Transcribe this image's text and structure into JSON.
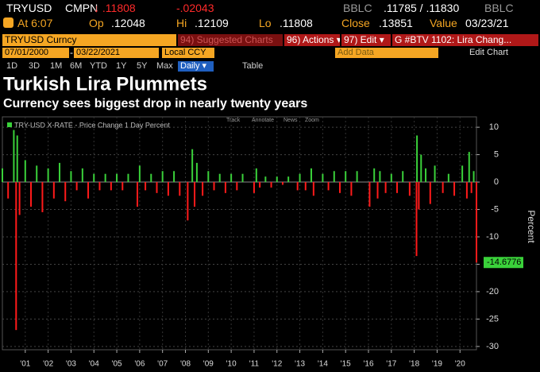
{
  "quote": {
    "ticker": "TRYUSD",
    "source": "CMPN",
    "last": "↓ .11808",
    "change": "-.02043",
    "bid_source": "BBLC",
    "bid_ask": ".11785 / .11830",
    "ask_source": "BBLC"
  },
  "quote_row2": {
    "time": "At 6:07",
    "open_label": "Op",
    "open": ".12048",
    "high_label": "Hi",
    "high": ".12109",
    "low_label": "Lo",
    "low": ".11808",
    "close_label": "Close",
    "close": ".13851",
    "value_label": "Value",
    "value_date": "03/23/21"
  },
  "toolbar": {
    "security": "TRYUSD Curncy",
    "suggested": "94) Suggested Charts",
    "actions": "96) Actions ▾",
    "edit": "97) Edit ▾",
    "story": "G #BTV 1102: Lira Chang..."
  },
  "range": {
    "start": "07/01/2000",
    "end": "03/22/2021",
    "currency": "Local CCY",
    "add_data": "Add Data",
    "edit_chart": "Edit Chart"
  },
  "periods": [
    "1D",
    "3D",
    "1M",
    "6M",
    "YTD",
    "1Y",
    "5Y",
    "Max"
  ],
  "frequency": "Daily ▾",
  "table": "Table",
  "chart_data": {
    "type": "bar",
    "title": "Turkish Lira Plummets",
    "subtitle": "Currency sees biggest drop in nearly twenty years",
    "tools": [
      "Track",
      "Annotate",
      "News",
      "Zoom"
    ],
    "y_label": "Percent",
    "color_up": "#3ad13a",
    "color_down": "#ff1a1a",
    "grid": true,
    "series": [
      {
        "name": "TRY-USD X-RATE - Price Change 1 Day Percent",
        "color": "#3ad13a",
        "x": [
          2000.5,
          2000.75,
          2001.0,
          2001.1,
          2001.15,
          2001.25,
          2001.5,
          2001.75,
          2002.0,
          2002.25,
          2002.5,
          2002.75,
          2003.0,
          2003.25,
          2003.5,
          2003.75,
          2004.0,
          2004.25,
          2004.5,
          2004.75,
          2005.0,
          2005.25,
          2005.5,
          2005.75,
          2006.0,
          2006.4,
          2006.5,
          2006.75,
          2007.0,
          2007.25,
          2007.5,
          2007.75,
          2008.0,
          2008.25,
          2008.6,
          2008.8,
          2008.9,
          2009.0,
          2009.25,
          2009.5,
          2009.75,
          2010.0,
          2010.25,
          2010.5,
          2010.75,
          2011.0,
          2011.5,
          2011.6,
          2011.75,
          2012.0,
          2012.25,
          2012.5,
          2012.75,
          2013.0,
          2013.4,
          2013.5,
          2013.75,
          2014.0,
          2014.1,
          2014.5,
          2014.75,
          2015.0,
          2015.25,
          2015.5,
          2015.75,
          2016.0,
          2016.55,
          2016.75,
          2016.9,
          2017.0,
          2017.25,
          2017.5,
          2017.75,
          2018.0,
          2018.3,
          2018.6,
          2018.62,
          2018.7,
          2018.8,
          2019.0,
          2019.2,
          2019.4,
          2019.75,
          2020.0,
          2020.25,
          2020.6,
          2020.8,
          2020.9,
          2021.0,
          2021.1,
          2021.22
        ],
        "values": [
          2.5,
          -3,
          9.5,
          -27,
          8.5,
          -6,
          4,
          -4.5,
          3,
          -5.5,
          2.5,
          -3,
          3.5,
          -3.5,
          2,
          -1.5,
          2.5,
          -3,
          1.5,
          -1.5,
          1.5,
          -1.5,
          1.5,
          -1.5,
          1.5,
          -4.5,
          3,
          -1.5,
          1.5,
          -2,
          2,
          -2.5,
          2,
          -2.5,
          -7,
          6,
          -4.5,
          3.5,
          -2.5,
          2,
          -1.5,
          1.5,
          -2,
          1.5,
          -1.5,
          1.5,
          -2,
          2.5,
          -1,
          1,
          -1,
          1,
          -0.5,
          1,
          -1.5,
          1.5,
          -1.5,
          2.5,
          -2.5,
          1.5,
          -1.5,
          2,
          -2,
          2,
          -2.5,
          2,
          -4.5,
          2.5,
          -3,
          2,
          -2,
          1.5,
          -2,
          2,
          -2.5,
          -13.5,
          8.5,
          -5,
          5,
          2.5,
          -4,
          3,
          -2,
          1.5,
          -2.5,
          3,
          -3,
          5.5,
          -2,
          2,
          -14.6776
        ]
      }
    ],
    "xlim": [
      2000.5,
      2021.22
    ],
    "xticks": [
      {
        "value": 2001.5,
        "label": "'01"
      },
      {
        "value": 2002.5,
        "label": "'02"
      },
      {
        "value": 2003.5,
        "label": "'03"
      },
      {
        "value": 2004.5,
        "label": "'04"
      },
      {
        "value": 2005.5,
        "label": "'05"
      },
      {
        "value": 2006.5,
        "label": "'06"
      },
      {
        "value": 2007.5,
        "label": "'07"
      },
      {
        "value": 2008.5,
        "label": "'08"
      },
      {
        "value": 2009.5,
        "label": "'09"
      },
      {
        "value": 2010.5,
        "label": "'10"
      },
      {
        "value": 2011.5,
        "label": "'11"
      },
      {
        "value": 2012.5,
        "label": "'12"
      },
      {
        "value": 2013.5,
        "label": "'13"
      },
      {
        "value": 2014.5,
        "label": "'14"
      },
      {
        "value": 2015.5,
        "label": "'15"
      },
      {
        "value": 2016.5,
        "label": "'16"
      },
      {
        "value": 2017.5,
        "label": "'17"
      },
      {
        "value": 2018.5,
        "label": "'18"
      },
      {
        "value": 2019.5,
        "label": "'19"
      },
      {
        "value": 2020.5,
        "label": "'20"
      }
    ],
    "ylim": [
      -30.6,
      11.9
    ],
    "yticks": [
      10,
      5,
      0,
      -5,
      -10,
      -15,
      -20,
      -25,
      -30
    ]
  }
}
